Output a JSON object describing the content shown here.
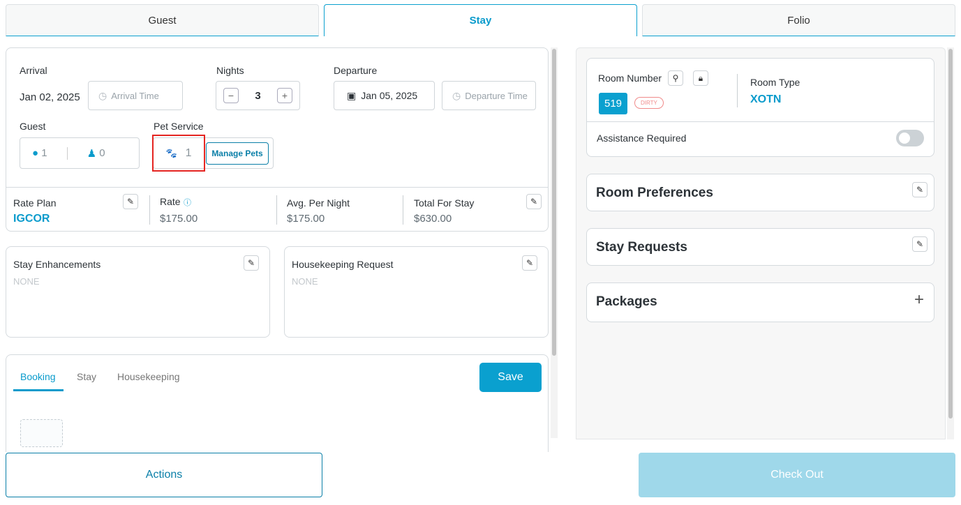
{
  "tabs": [
    {
      "label": "Guest"
    },
    {
      "label": "Stay"
    },
    {
      "label": "Folio"
    }
  ],
  "stay": {
    "arrival_label": "Arrival",
    "arrival_date": "Jan 02, 2025",
    "arrival_time_placeholder": "Arrival Time",
    "nights_label": "Nights",
    "nights": "3",
    "departure_label": "Departure",
    "departure_date": "Jan 05, 2025",
    "departure_time_placeholder": "Departure Time",
    "guest_label": "Guest",
    "adults": "1",
    "children": "0",
    "pet_label": "Pet Service",
    "pets": "1",
    "manage_pets": "Manage Pets"
  },
  "rates": {
    "rate_plan_label": "Rate Plan",
    "rate_plan": "IGCOR",
    "rate_label": "Rate",
    "rate": "$175.00",
    "avg_label": "Avg. Per Night",
    "avg": "$175.00",
    "total_label": "Total For Stay",
    "total": "$630.00"
  },
  "enhancements": {
    "label": "Stay Enhancements",
    "value": "NONE"
  },
  "housekeeping": {
    "label": "Housekeeping Request",
    "value": "NONE"
  },
  "notes_tabs": [
    {
      "label": "Booking"
    },
    {
      "label": "Stay"
    },
    {
      "label": "Housekeeping"
    }
  ],
  "save": "Save",
  "room": {
    "number_label": "Room Number",
    "number": "519",
    "status": "DIRTY",
    "type_label": "Room Type",
    "type": "XOTN",
    "assistance_label": "Assistance Required",
    "assistance_on": false
  },
  "sections": [
    {
      "label": "Room Preferences"
    },
    {
      "label": "Stay Requests"
    },
    {
      "label": "Packages"
    }
  ],
  "footer": {
    "actions": "Actions",
    "checkout": "Check Out"
  },
  "colors": {
    "accent": "#0a9bcc",
    "checkout_disabled": "#9fd8ea",
    "dirty": "#f08a8a",
    "highlight": "#e52521"
  }
}
